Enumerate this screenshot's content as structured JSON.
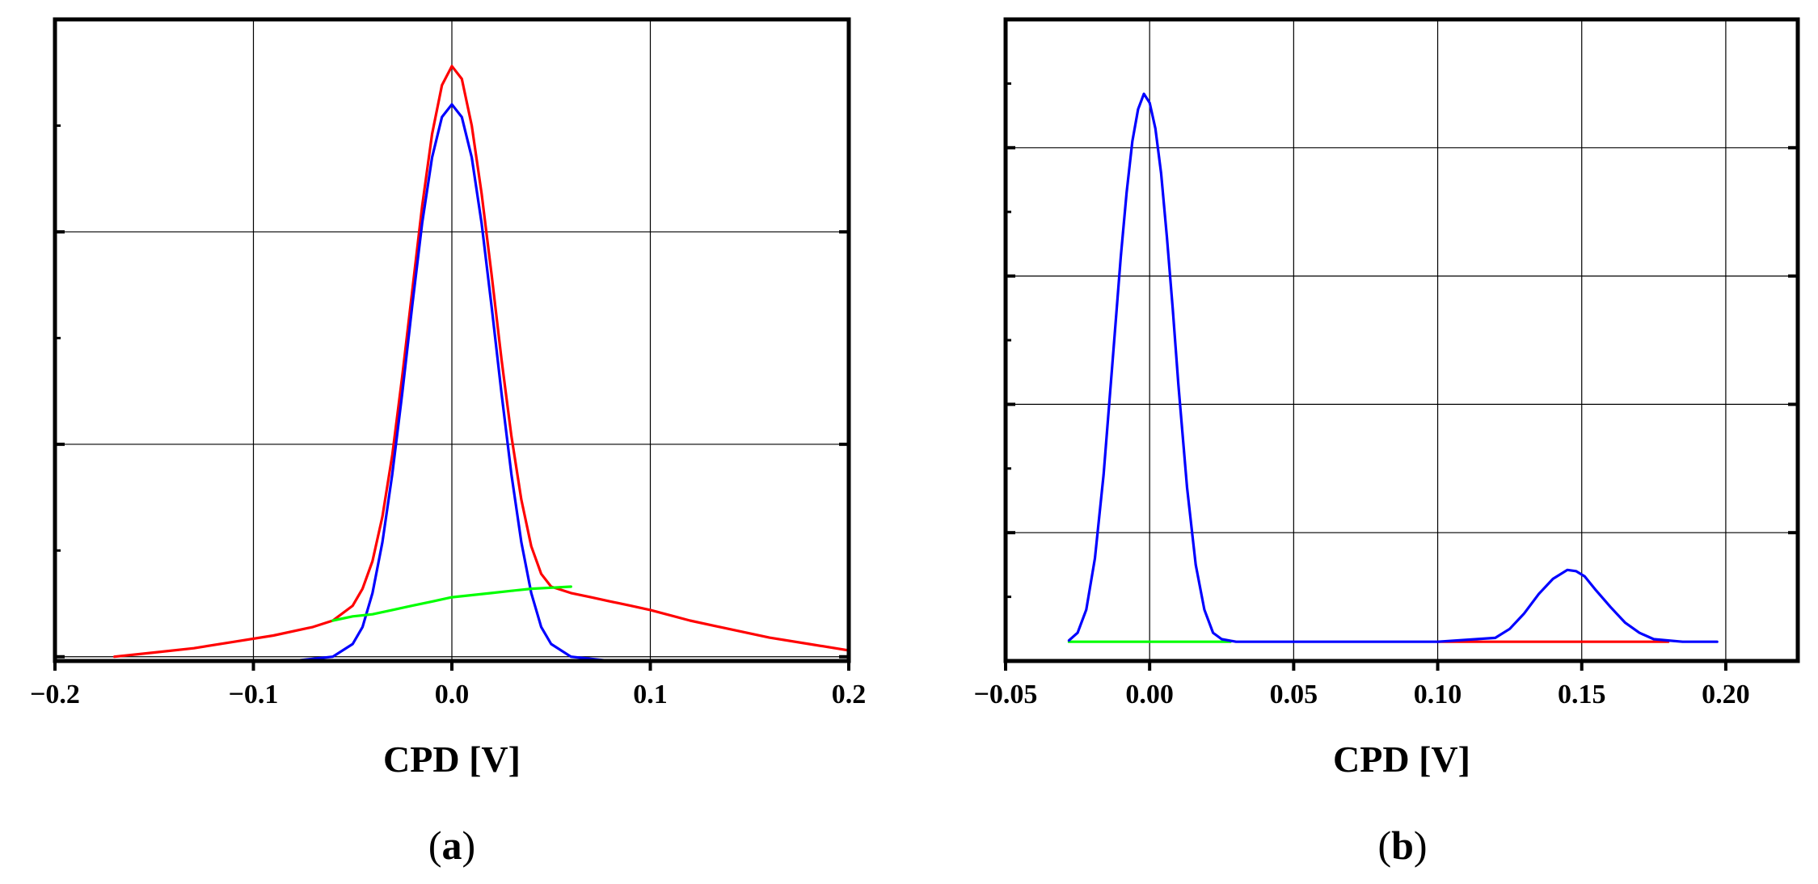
{
  "chart_data": [
    {
      "type": "line",
      "panel_label_open": "(",
      "panel_label_letter": "a",
      "panel_label_close": ")",
      "xlabel": "CPD [V]",
      "ylabel": "",
      "xlim": [
        -0.2,
        0.2
      ],
      "ylim": [
        -0.02,
        3.0
      ],
      "x_ticks": [
        -0.2,
        -0.1,
        0.0,
        0.1,
        0.2
      ],
      "x_tick_labels": [
        "−0.2",
        "−0.1",
        "0.0",
        "0.1",
        "0.2"
      ],
      "y_major_ticks": [
        0,
        1,
        2,
        3
      ],
      "y_minor_ticks": [
        0.5,
        1.5,
        2.5
      ],
      "grid": true,
      "legend": "none",
      "series": [
        {
          "color": "#ff0000",
          "x": [
            -0.17,
            -0.15,
            -0.13,
            -0.11,
            -0.09,
            -0.07,
            -0.06,
            -0.05,
            -0.045,
            -0.04,
            -0.035,
            -0.03,
            -0.025,
            -0.02,
            -0.015,
            -0.01,
            -0.005,
            0.0,
            0.005,
            0.01,
            0.015,
            0.02,
            0.025,
            0.03,
            0.035,
            0.04,
            0.045,
            0.05,
            0.06,
            0.07,
            0.08,
            0.09,
            0.1,
            0.12,
            0.14,
            0.16,
            0.18,
            0.2
          ],
          "y": [
            0.0,
            0.02,
            0.04,
            0.07,
            0.1,
            0.14,
            0.17,
            0.24,
            0.32,
            0.45,
            0.66,
            0.95,
            1.32,
            1.72,
            2.12,
            2.46,
            2.69,
            2.78,
            2.72,
            2.5,
            2.18,
            1.8,
            1.4,
            1.04,
            0.74,
            0.52,
            0.39,
            0.33,
            0.3,
            0.28,
            0.26,
            0.24,
            0.22,
            0.17,
            0.13,
            0.09,
            0.06,
            0.03
          ]
        },
        {
          "color": "#0000ff",
          "x": [
            -0.17,
            -0.08,
            -0.06,
            -0.05,
            -0.045,
            -0.04,
            -0.035,
            -0.03,
            -0.025,
            -0.02,
            -0.015,
            -0.01,
            -0.005,
            0.0,
            0.005,
            0.01,
            0.015,
            0.02,
            0.025,
            0.03,
            0.035,
            0.04,
            0.045,
            0.05,
            0.06,
            0.08,
            0.2
          ],
          "y": [
            -0.02,
            -0.02,
            0.0,
            0.06,
            0.14,
            0.3,
            0.54,
            0.86,
            1.24,
            1.65,
            2.04,
            2.35,
            2.54,
            2.6,
            2.54,
            2.35,
            2.04,
            1.65,
            1.24,
            0.86,
            0.54,
            0.3,
            0.14,
            0.06,
            0.0,
            -0.02,
            -0.02
          ]
        },
        {
          "color": "#00ff00",
          "x": [
            -0.06,
            -0.05,
            -0.04,
            -0.03,
            -0.02,
            -0.01,
            0.0,
            0.01,
            0.02,
            0.03,
            0.04,
            0.05,
            0.06
          ],
          "y": [
            0.17,
            0.19,
            0.2,
            0.22,
            0.24,
            0.26,
            0.28,
            0.29,
            0.3,
            0.31,
            0.32,
            0.325,
            0.33
          ]
        }
      ]
    },
    {
      "type": "line",
      "panel_label_open": "(",
      "panel_label_letter": "b",
      "panel_label_close": ")",
      "xlabel": "CPD [V]",
      "ylabel": "",
      "xlim": [
        -0.05,
        0.225
      ],
      "ylim": [
        0,
        5.0
      ],
      "x_ticks": [
        -0.05,
        0.0,
        0.05,
        0.1,
        0.15,
        0.2
      ],
      "x_tick_labels": [
        "−0.05",
        "0.00",
        "0.05",
        "0.10",
        "0.15",
        "0.20"
      ],
      "y_major_ticks": [
        0,
        1,
        2,
        3,
        4
      ],
      "y_minor_ticks": [
        0.5,
        1.5,
        2.5,
        3.5,
        4.5
      ],
      "grid": true,
      "legend": "none",
      "series": [
        {
          "color": "#ff0000",
          "x": [
            0.1,
            0.18
          ],
          "y": [
            0.15,
            0.15
          ]
        },
        {
          "color": "#00ff00",
          "x": [
            -0.028,
            0.028
          ],
          "y": [
            0.15,
            0.15
          ]
        },
        {
          "color": "#0000ff",
          "x": [
            -0.028,
            -0.025,
            -0.022,
            -0.019,
            -0.016,
            -0.013,
            -0.01,
            -0.008,
            -0.006,
            -0.004,
            -0.002,
            0.0,
            0.002,
            0.004,
            0.006,
            0.008,
            0.01,
            0.013,
            0.016,
            0.019,
            0.022,
            0.025,
            0.03,
            0.05,
            0.1,
            0.12,
            0.125,
            0.13,
            0.135,
            0.14,
            0.145,
            0.148,
            0.151,
            0.155,
            0.16,
            0.165,
            0.17,
            0.175,
            0.18,
            0.185,
            0.197
          ],
          "y": [
            0.16,
            0.22,
            0.4,
            0.8,
            1.45,
            2.3,
            3.15,
            3.65,
            4.05,
            4.3,
            4.42,
            4.35,
            4.15,
            3.8,
            3.3,
            2.75,
            2.15,
            1.35,
            0.75,
            0.4,
            0.22,
            0.17,
            0.15,
            0.15,
            0.15,
            0.18,
            0.25,
            0.37,
            0.52,
            0.64,
            0.71,
            0.7,
            0.66,
            0.55,
            0.42,
            0.3,
            0.22,
            0.17,
            0.16,
            0.15,
            0.15
          ]
        }
      ]
    }
  ]
}
